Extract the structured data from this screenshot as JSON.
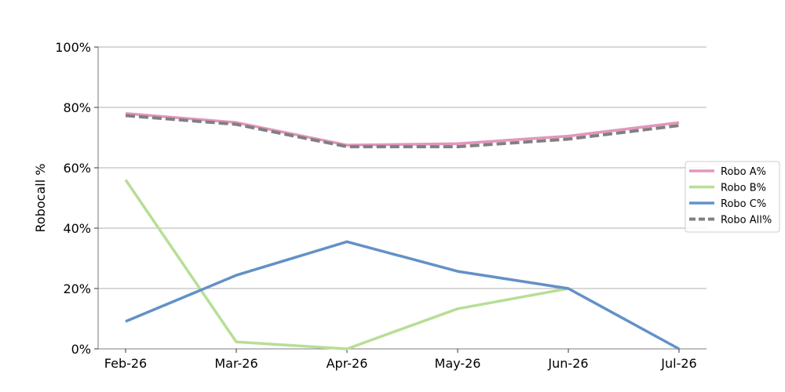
{
  "chart_data": {
    "type": "line",
    "categories": [
      "Feb-26",
      "Mar-26",
      "Apr-26",
      "May-26",
      "Jun-26",
      "Jul-26"
    ],
    "ylabel": "Robocall %",
    "xlabel": "",
    "ylim": [
      0,
      100
    ],
    "yticks": [
      0,
      20,
      40,
      60,
      80,
      100
    ],
    "ytick_labels": [
      "0%",
      "20%",
      "40%",
      "60%",
      "80%",
      "100%"
    ],
    "grid": "horizontal",
    "legend_position": "right",
    "series": [
      {
        "name": "Robo A%",
        "color": "#e396bc",
        "dash": "solid",
        "values": [
          78,
          75,
          67.5,
          68,
          70.5,
          75
        ]
      },
      {
        "name": "Robo B%",
        "color": "#b7de96",
        "dash": "solid",
        "values": [
          56,
          2.3,
          0,
          13.3,
          20,
          null
        ]
      },
      {
        "name": "Robo C%",
        "color": "#6391c7",
        "dash": "solid",
        "values": [
          9.1,
          24.4,
          35.5,
          25.7,
          20,
          0
        ]
      },
      {
        "name": "Robo All%",
        "color": "#808080",
        "dash": "dashed",
        "values": [
          77.3,
          74.4,
          67,
          67,
          69.5,
          74
        ]
      }
    ]
  }
}
